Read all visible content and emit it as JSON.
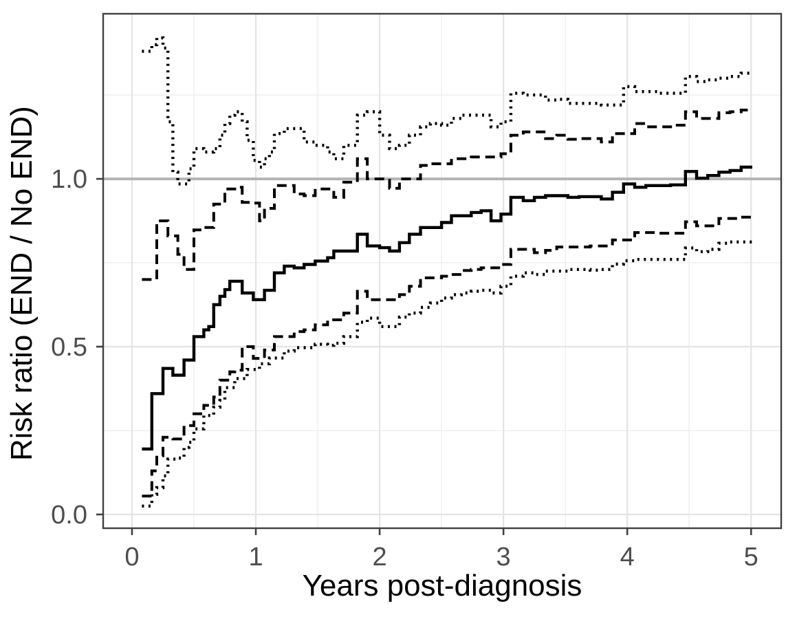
{
  "figure": {
    "background_color": "#ffffff",
    "panel_background": "#ffffff",
    "panel_border_color": "#404040",
    "grid_major_color": "#e4e4e4",
    "grid_minor_color": "#efefef",
    "tick_color": "#404040",
    "tick_label_color": "#4d4d4d",
    "axis_title_color": "#000000"
  },
  "chart_data": {
    "type": "line",
    "subtype": "step",
    "title": "",
    "xlabel": "Years post-diagnosis",
    "ylabel": "Risk ratio (END / No END)",
    "legend": "none",
    "grid": true,
    "xlim": [
      -0.233,
      5.243
    ],
    "ylim": [
      -0.041,
      1.492
    ],
    "x_tick_values": [
      0,
      1,
      2,
      3,
      4,
      5
    ],
    "x_tick_labels": [
      "0",
      "1",
      "2",
      "3",
      "4",
      "5"
    ],
    "y_tick_values": [
      0.0,
      0.5,
      1.0
    ],
    "y_tick_labels": [
      "0.0",
      "0.5",
      "1.0"
    ],
    "x_minor_ticks": [
      0.5,
      1.5,
      2.5,
      3.5,
      4.5
    ],
    "y_minor_ticks": [
      0.25,
      0.75,
      1.25
    ],
    "reference_line": {
      "y": 1.0,
      "color": "#b4b4b4"
    },
    "line_color": "#000000",
    "x_end": 5.01,
    "step_x": [
      0.08,
      0.16,
      0.2,
      0.25,
      0.29,
      0.33,
      0.37,
      0.42,
      0.46,
      0.5,
      0.54,
      0.58,
      0.62,
      0.66,
      0.71,
      0.75,
      0.79,
      0.83,
      0.89,
      0.93,
      0.98,
      1.03,
      1.07,
      1.11,
      1.15,
      1.23,
      1.31,
      1.39,
      1.48,
      1.58,
      1.63,
      1.71,
      1.82,
      1.9,
      2.0,
      2.08,
      2.16,
      2.24,
      2.33,
      2.41,
      2.5,
      2.58,
      2.66,
      2.74,
      2.82,
      2.9,
      2.98,
      3.06,
      3.16,
      3.25,
      3.34,
      3.43,
      3.52,
      3.61,
      3.7,
      3.79,
      3.88,
      3.97,
      4.06,
      4.15,
      4.25,
      4.35,
      4.47,
      4.56,
      4.65,
      4.74,
      4.83,
      4.92
    ],
    "series": [
      {
        "name": "risk-ratio",
        "style": "solid",
        "values": [
          0.195,
          0.36,
          0.36,
          0.435,
          0.435,
          0.415,
          0.415,
          0.46,
          0.46,
          0.53,
          0.53,
          0.55,
          0.56,
          0.625,
          0.65,
          0.67,
          0.695,
          0.695,
          0.66,
          0.66,
          0.64,
          0.64,
          0.668,
          0.668,
          0.72,
          0.74,
          0.735,
          0.745,
          0.755,
          0.765,
          0.785,
          0.785,
          0.835,
          0.8,
          0.795,
          0.785,
          0.81,
          0.835,
          0.855,
          0.855,
          0.87,
          0.89,
          0.89,
          0.9,
          0.905,
          0.875,
          0.895,
          0.945,
          0.935,
          0.945,
          0.95,
          0.95,
          0.945,
          0.947,
          0.947,
          0.94,
          0.96,
          0.985,
          0.975,
          0.98,
          0.98,
          0.982,
          1.022,
          1.002,
          1.01,
          1.02,
          1.025,
          1.035
        ]
      },
      {
        "name": "upper-bound-dashed",
        "style": "dashed",
        "values": [
          0.7,
          0.7,
          0.875,
          0.875,
          0.83,
          0.83,
          0.775,
          0.73,
          0.73,
          0.848,
          0.848,
          0.855,
          0.855,
          0.925,
          0.925,
          0.97,
          0.97,
          0.975,
          0.93,
          0.93,
          0.928,
          0.875,
          0.912,
          0.912,
          0.98,
          0.98,
          0.955,
          0.95,
          0.97,
          0.97,
          0.945,
          0.99,
          1.06,
          1.0,
          1.0,
          0.972,
          1.0,
          1.0,
          1.04,
          1.045,
          1.045,
          1.06,
          1.06,
          1.065,
          1.065,
          1.065,
          1.075,
          1.13,
          1.14,
          1.14,
          1.12,
          1.13,
          1.118,
          1.12,
          1.12,
          1.11,
          1.135,
          1.135,
          1.165,
          1.155,
          1.155,
          1.16,
          1.2,
          1.18,
          1.18,
          1.197,
          1.2,
          1.205
        ]
      },
      {
        "name": "lower-bound-dashed",
        "style": "dashed",
        "values": [
          0.055,
          0.13,
          0.175,
          0.23,
          0.23,
          0.225,
          0.225,
          0.265,
          0.265,
          0.3,
          0.3,
          0.325,
          0.325,
          0.35,
          0.4,
          0.4,
          0.425,
          0.43,
          0.5,
          0.5,
          0.465,
          0.465,
          0.49,
          0.49,
          0.53,
          0.53,
          0.545,
          0.55,
          0.565,
          0.58,
          0.58,
          0.6,
          0.665,
          0.64,
          0.64,
          0.64,
          0.655,
          0.68,
          0.705,
          0.705,
          0.71,
          0.715,
          0.727,
          0.73,
          0.735,
          0.735,
          0.745,
          0.79,
          0.79,
          0.78,
          0.787,
          0.797,
          0.797,
          0.797,
          0.8,
          0.8,
          0.818,
          0.818,
          0.84,
          0.84,
          0.838,
          0.838,
          0.872,
          0.86,
          0.86,
          0.882,
          0.882,
          0.886
        ]
      },
      {
        "name": "upper-bound-dotted",
        "style": "dotted",
        "values": [
          1.38,
          1.4,
          1.42,
          1.39,
          1.17,
          1.02,
          0.985,
          0.985,
          1.03,
          1.09,
          1.09,
          1.08,
          1.08,
          1.09,
          1.13,
          1.165,
          1.19,
          1.2,
          1.17,
          1.115,
          1.055,
          1.035,
          1.06,
          1.08,
          1.135,
          1.15,
          1.15,
          1.11,
          1.1,
          1.08,
          1.06,
          1.1,
          1.19,
          1.2,
          1.13,
          1.09,
          1.1,
          1.13,
          1.155,
          1.165,
          1.16,
          1.18,
          1.19,
          1.19,
          1.19,
          1.155,
          1.17,
          1.255,
          1.25,
          1.25,
          1.235,
          1.237,
          1.225,
          1.225,
          1.225,
          1.22,
          1.22,
          1.275,
          1.26,
          1.26,
          1.255,
          1.255,
          1.305,
          1.29,
          1.295,
          1.3,
          1.305,
          1.315
        ]
      },
      {
        "name": "lower-bound-dotted",
        "style": "dotted",
        "values": [
          0.025,
          0.06,
          0.08,
          0.115,
          0.165,
          0.165,
          0.168,
          0.2,
          0.215,
          0.255,
          0.255,
          0.295,
          0.295,
          0.32,
          0.34,
          0.378,
          0.378,
          0.405,
          0.405,
          0.432,
          0.432,
          0.449,
          0.449,
          0.466,
          0.466,
          0.487,
          0.497,
          0.497,
          0.507,
          0.504,
          0.51,
          0.53,
          0.573,
          0.585,
          0.56,
          0.56,
          0.588,
          0.6,
          0.617,
          0.63,
          0.645,
          0.655,
          0.66,
          0.665,
          0.668,
          0.66,
          0.68,
          0.71,
          0.72,
          0.715,
          0.725,
          0.725,
          0.73,
          0.73,
          0.728,
          0.73,
          0.746,
          0.756,
          0.76,
          0.76,
          0.76,
          0.76,
          0.794,
          0.783,
          0.79,
          0.808,
          0.812,
          0.812
        ]
      }
    ]
  }
}
